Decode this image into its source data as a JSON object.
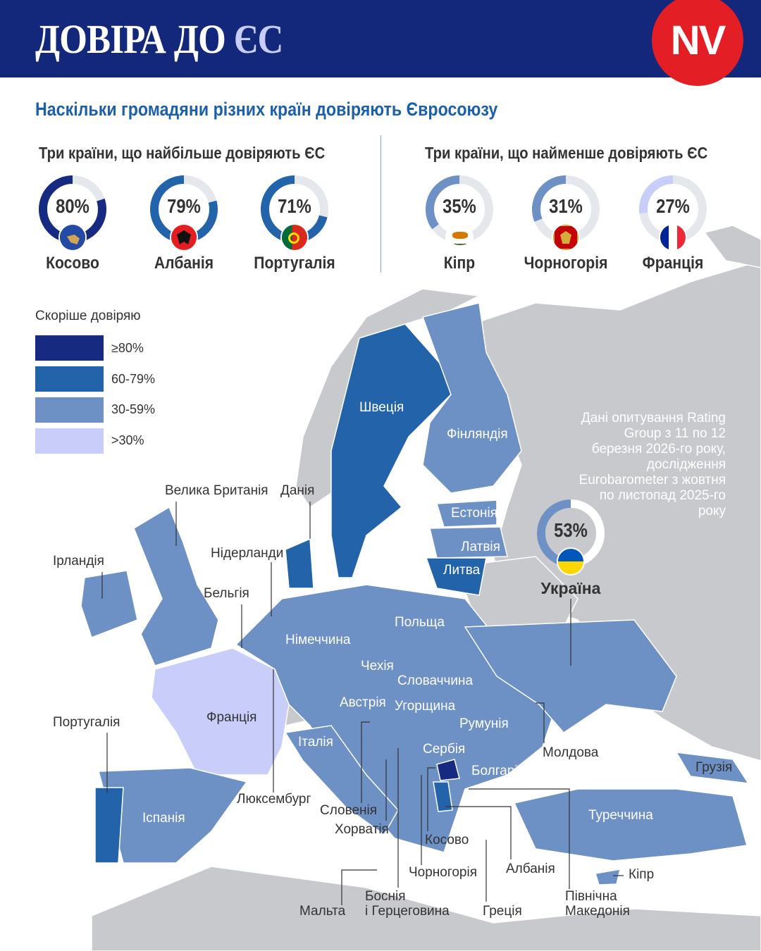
{
  "header": {
    "title_main": "ДОВІРА ДО ",
    "title_accent": "ЄС",
    "logo": "NV"
  },
  "subtitle": "Наскільки громадяни різних країн довіряють Євросоюзу",
  "top": {
    "heading": "Три країни, що найбільше довіряють ЄС",
    "items": [
      {
        "country": "Косово",
        "value": 80,
        "label": "80%",
        "flag": "kosovo-flag"
      },
      {
        "country": "Албанія",
        "value": 79,
        "label": "79%",
        "flag": "albania-flag"
      },
      {
        "country": "Португалія",
        "value": 71,
        "label": "71%",
        "flag": "portugal-flag"
      }
    ]
  },
  "bottom": {
    "heading": "Три країни, що найменше довіряють ЄС",
    "items": [
      {
        "country": "Кіпр",
        "value": 35,
        "label": "35%",
        "flag": "cyprus-flag"
      },
      {
        "country": "Чорногорія",
        "value": 31,
        "label": "31%",
        "flag": "montenegro-flag"
      },
      {
        "country": "Франція",
        "value": 27,
        "label": "27%",
        "flag": "france-flag"
      }
    ]
  },
  "legend": {
    "title": "Скоріше довіряю",
    "items": [
      {
        "label": "≥80%",
        "color": "#172a82"
      },
      {
        "label": "60-79%",
        "color": "#2363a9"
      },
      {
        "label": "30-59%",
        "color": "#6d90c5"
      },
      {
        "label": ">30%",
        "color": "#c8cdfa"
      }
    ]
  },
  "colors": {
    "header": "#13287a",
    "logo": "#e31e24",
    "land": "#c8c9cc",
    "subtitle": "#1d5fa8"
  },
  "ukraine": {
    "country": "Україна",
    "value": 53,
    "label": "53%"
  },
  "note": "Дані опитування Rating Group з 11 по 12 березня 2026-го року, дослідження Eurobarometer з жовтня по листопад 2025-го року",
  "map_labels": [
    "Швеція",
    "Фінляндія",
    "Естонія",
    "Латвія",
    "Литва",
    "Велика Британія",
    "Данія",
    "Ірландія",
    "Нідерланди",
    "Бельгія",
    "Німеччина",
    "Польща",
    "Чехія",
    "Словаччина",
    "Австрія",
    "Угорщина",
    "Румунія",
    "Франція",
    "Італія",
    "Сербія",
    "Болгарія",
    "Молдова",
    "Грузія",
    "Португалія",
    "Іспанія",
    "Люксембург",
    "Словенія",
    "Хорватія",
    "Туреччина",
    "Косово",
    "Албанія",
    "Чорногорія",
    "Кіпр",
    "Мальта",
    "Боснія",
    "і Герцеговина",
    "Греція",
    "Північна",
    "Македонія"
  ]
}
